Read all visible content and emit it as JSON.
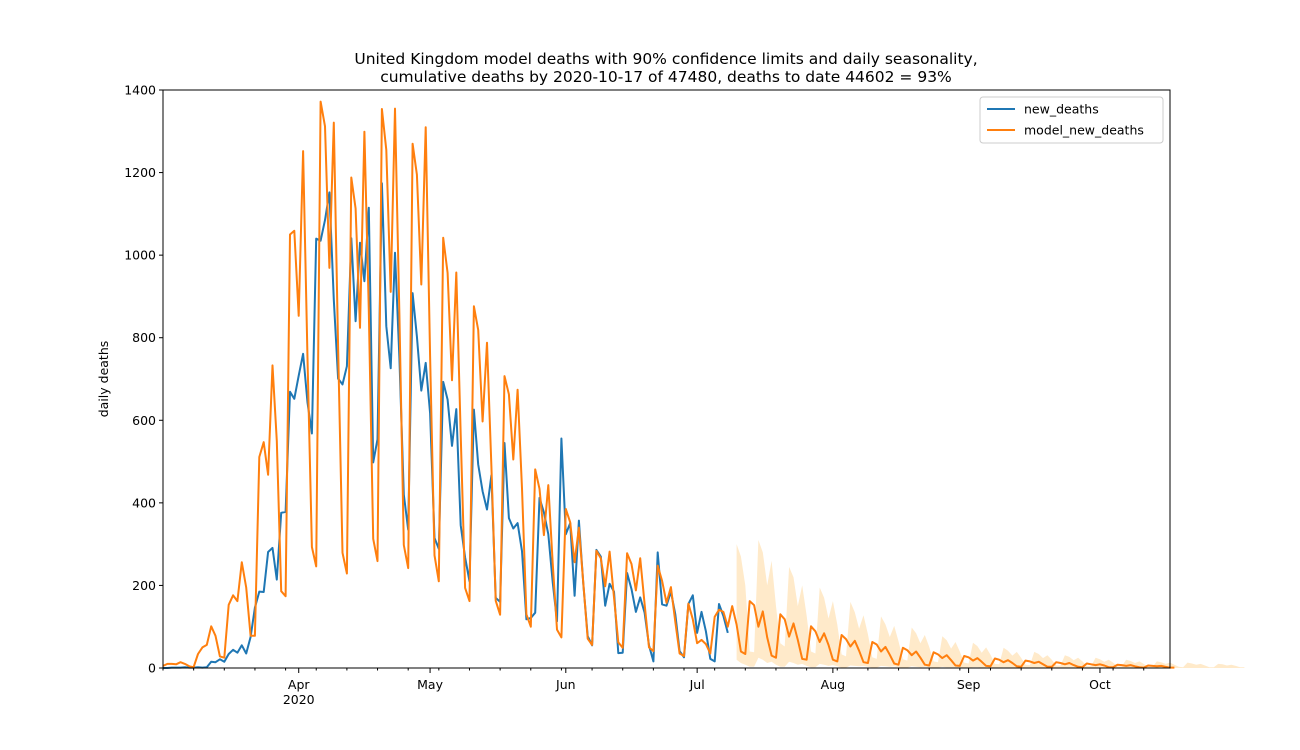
{
  "chart_data": {
    "type": "line",
    "title_line1": "United Kingdom model deaths with 90% confidence limits and daily seasonality,",
    "title_line2": "cumulative deaths by 2020-10-17 of 47480, deaths to date 44602 = 93%",
    "xlabel": "",
    "ylabel": "daily deaths",
    "ylim": [
      0,
      1400
    ],
    "yticks": [
      0,
      200,
      400,
      600,
      800,
      1000,
      1200,
      1400
    ],
    "xlim": [
      "2020-03-01",
      "2020-10-17"
    ],
    "xticks": [
      {
        "date": "2020-04-01",
        "label": "Apr",
        "sublabel": "2020"
      },
      {
        "date": "2020-05-01",
        "label": "May"
      },
      {
        "date": "2020-06-01",
        "label": "Jun"
      },
      {
        "date": "2020-07-01",
        "label": "Jul"
      },
      {
        "date": "2020-08-01",
        "label": "Aug"
      },
      {
        "date": "2020-09-01",
        "label": "Sep"
      },
      {
        "date": "2020-10-01",
        "label": "Oct"
      }
    ],
    "grid": false,
    "legend_position": "top-right",
    "start_date": "2020-03-01",
    "series": [
      {
        "name": "new_deaths",
        "color": "#1f77b4",
        "values": [
          0,
          0,
          1,
          1,
          1,
          2,
          1,
          1,
          2,
          1,
          2,
          15,
          14,
          21,
          15,
          34,
          44,
          37,
          55,
          35,
          75,
          146,
          185,
          184,
          281,
          291,
          214,
          376,
          378,
          669,
          652,
          708,
          761,
          643,
          568,
          1040,
          1035,
          1085,
          1152,
          892,
          701,
          687,
          731,
          1041,
          840,
          1030,
          937,
          1115,
          498,
          554,
          1174,
          828,
          726,
          1006,
          751,
          420,
          335,
          908,
          803,
          672,
          739,
          617,
          315,
          289,
          693,
          650,
          538,
          627,
          346,
          268,
          210,
          626,
          493,
          428,
          384,
          467,
          170,
          160,
          545,
          363,
          338,
          351,
          283,
          118,
          121,
          134,
          412,
          377,
          324,
          208,
          113,
          556,
          324,
          351,
          175,
          357,
          204,
          77,
          55,
          286,
          270,
          151,
          204,
          185,
          36,
          37,
          230,
          191,
          136,
          171,
          134,
          55,
          16,
          280,
          154,
          151,
          185,
          130,
          41,
          26,
          155,
          176,
          85,
          136,
          89,
          22,
          16,
          155,
          126,
          85
        ],
        "color_hint": "blue"
      },
      {
        "name": "model_new_deaths",
        "color": "#ff7f0e",
        "values": [
          5,
          10,
          10,
          9,
          14,
          10,
          4,
          2,
          34,
          50,
          56,
          101,
          78,
          28,
          25,
          153,
          176,
          162,
          256,
          195,
          78,
          78,
          511,
          547,
          468,
          733,
          550,
          186,
          174,
          1050,
          1059,
          853,
          1252,
          750,
          293,
          246,
          1372,
          1312,
          969,
          1321,
          778,
          279,
          229,
          1188,
          1113,
          824,
          1299,
          866,
          313,
          259,
          1354,
          1255,
          911,
          1355,
          855,
          298,
          242,
          1270,
          1195,
          929,
          1310,
          755,
          273,
          210,
          1042,
          957,
          697,
          958,
          565,
          194,
          162,
          876,
          819,
          597,
          788,
          488,
          163,
          129,
          707,
          663,
          505,
          674,
          435,
          130,
          100,
          481,
          434,
          322,
          443,
          254,
          93,
          74,
          385,
          353,
          256,
          340,
          206,
          71,
          56,
          284,
          266,
          198,
          282,
          171,
          62,
          49,
          278,
          252,
          188,
          266,
          155,
          50,
          41,
          248,
          211,
          158,
          196,
          112,
          35,
          29,
          156,
          118,
          60,
          68,
          58,
          35,
          124,
          141,
          136,
          100,
          150,
          105,
          40,
          34,
          162,
          152,
          100,
          137,
          74,
          30,
          25,
          130,
          118,
          76,
          108,
          68,
          22,
          20,
          101,
          89,
          63,
          84,
          56,
          20,
          16,
          80,
          70,
          52,
          66,
          42,
          14,
          12,
          63,
          57,
          40,
          51,
          32,
          11,
          8,
          49,
          43,
          31,
          40,
          25,
          8,
          6,
          38,
          33,
          24,
          31,
          19,
          6,
          5,
          29,
          26,
          18,
          24,
          15,
          5,
          4,
          23,
          20,
          14,
          19,
          12,
          4,
          3,
          18,
          16,
          12,
          15,
          9,
          3,
          3,
          14,
          12,
          9,
          12,
          7,
          3,
          2,
          11,
          9,
          7,
          9,
          6,
          2,
          2,
          8,
          7,
          5,
          7,
          4,
          2,
          1,
          6,
          5,
          4,
          5,
          3,
          1,
          1
        ]
      },
      {
        "name": "upper_90",
        "band": true,
        "color": "#ffe3b8",
        "start_index": 131,
        "values": [
          300,
          270,
          200,
          40,
          38,
          310,
          280,
          200,
          260,
          150,
          60,
          52,
          245,
          220,
          150,
          200,
          128,
          40,
          35,
          195,
          170,
          120,
          162,
          105,
          33,
          28,
          160,
          135,
          95,
          128,
          82,
          26,
          22,
          125,
          106,
          75,
          102,
          65,
          21,
          18,
          98,
          84,
          60,
          80,
          51,
          16,
          14,
          77,
          67,
          47,
          63,
          40,
          13,
          11,
          61,
          53,
          37,
          50,
          32,
          10,
          9,
          49,
          42,
          30,
          39,
          25,
          8,
          7,
          39,
          34,
          24,
          31,
          20,
          6,
          6,
          31,
          27,
          19,
          25,
          16,
          5,
          5,
          25,
          21,
          15,
          20,
          13,
          4,
          4,
          20,
          17,
          12,
          16,
          10,
          3,
          3,
          16,
          14,
          10,
          13,
          8,
          3,
          2,
          13,
          11,
          8,
          10,
          6,
          2,
          2,
          10,
          9,
          6,
          8,
          5,
          2,
          2
        ]
      },
      {
        "name": "lower_90",
        "band": true,
        "start_index": 131,
        "values": [
          20,
          12,
          8,
          3,
          3,
          25,
          20,
          12,
          15,
          8,
          3,
          3,
          15,
          12,
          8,
          10,
          5,
          2,
          2,
          10,
          8,
          5,
          7,
          4,
          1,
          1,
          6,
          5,
          4,
          5,
          3,
          1,
          1,
          5,
          4,
          3,
          4,
          2,
          1,
          1,
          4,
          3,
          2,
          3,
          2,
          1,
          1,
          3,
          2,
          2,
          2,
          1,
          0,
          0,
          2,
          2,
          1,
          2,
          1,
          0,
          0,
          2,
          1,
          1,
          1,
          1,
          0,
          0,
          1,
          1,
          1,
          1,
          1,
          0,
          0,
          1,
          1,
          1,
          1,
          0,
          0,
          0,
          1,
          1,
          0,
          1,
          0,
          0,
          0,
          1,
          1,
          0,
          0,
          0,
          0,
          0,
          0,
          0,
          0,
          0,
          0,
          0,
          0,
          0,
          0,
          0,
          0,
          0,
          0,
          0,
          0,
          0,
          0,
          0,
          0,
          0,
          0
        ]
      }
    ]
  }
}
